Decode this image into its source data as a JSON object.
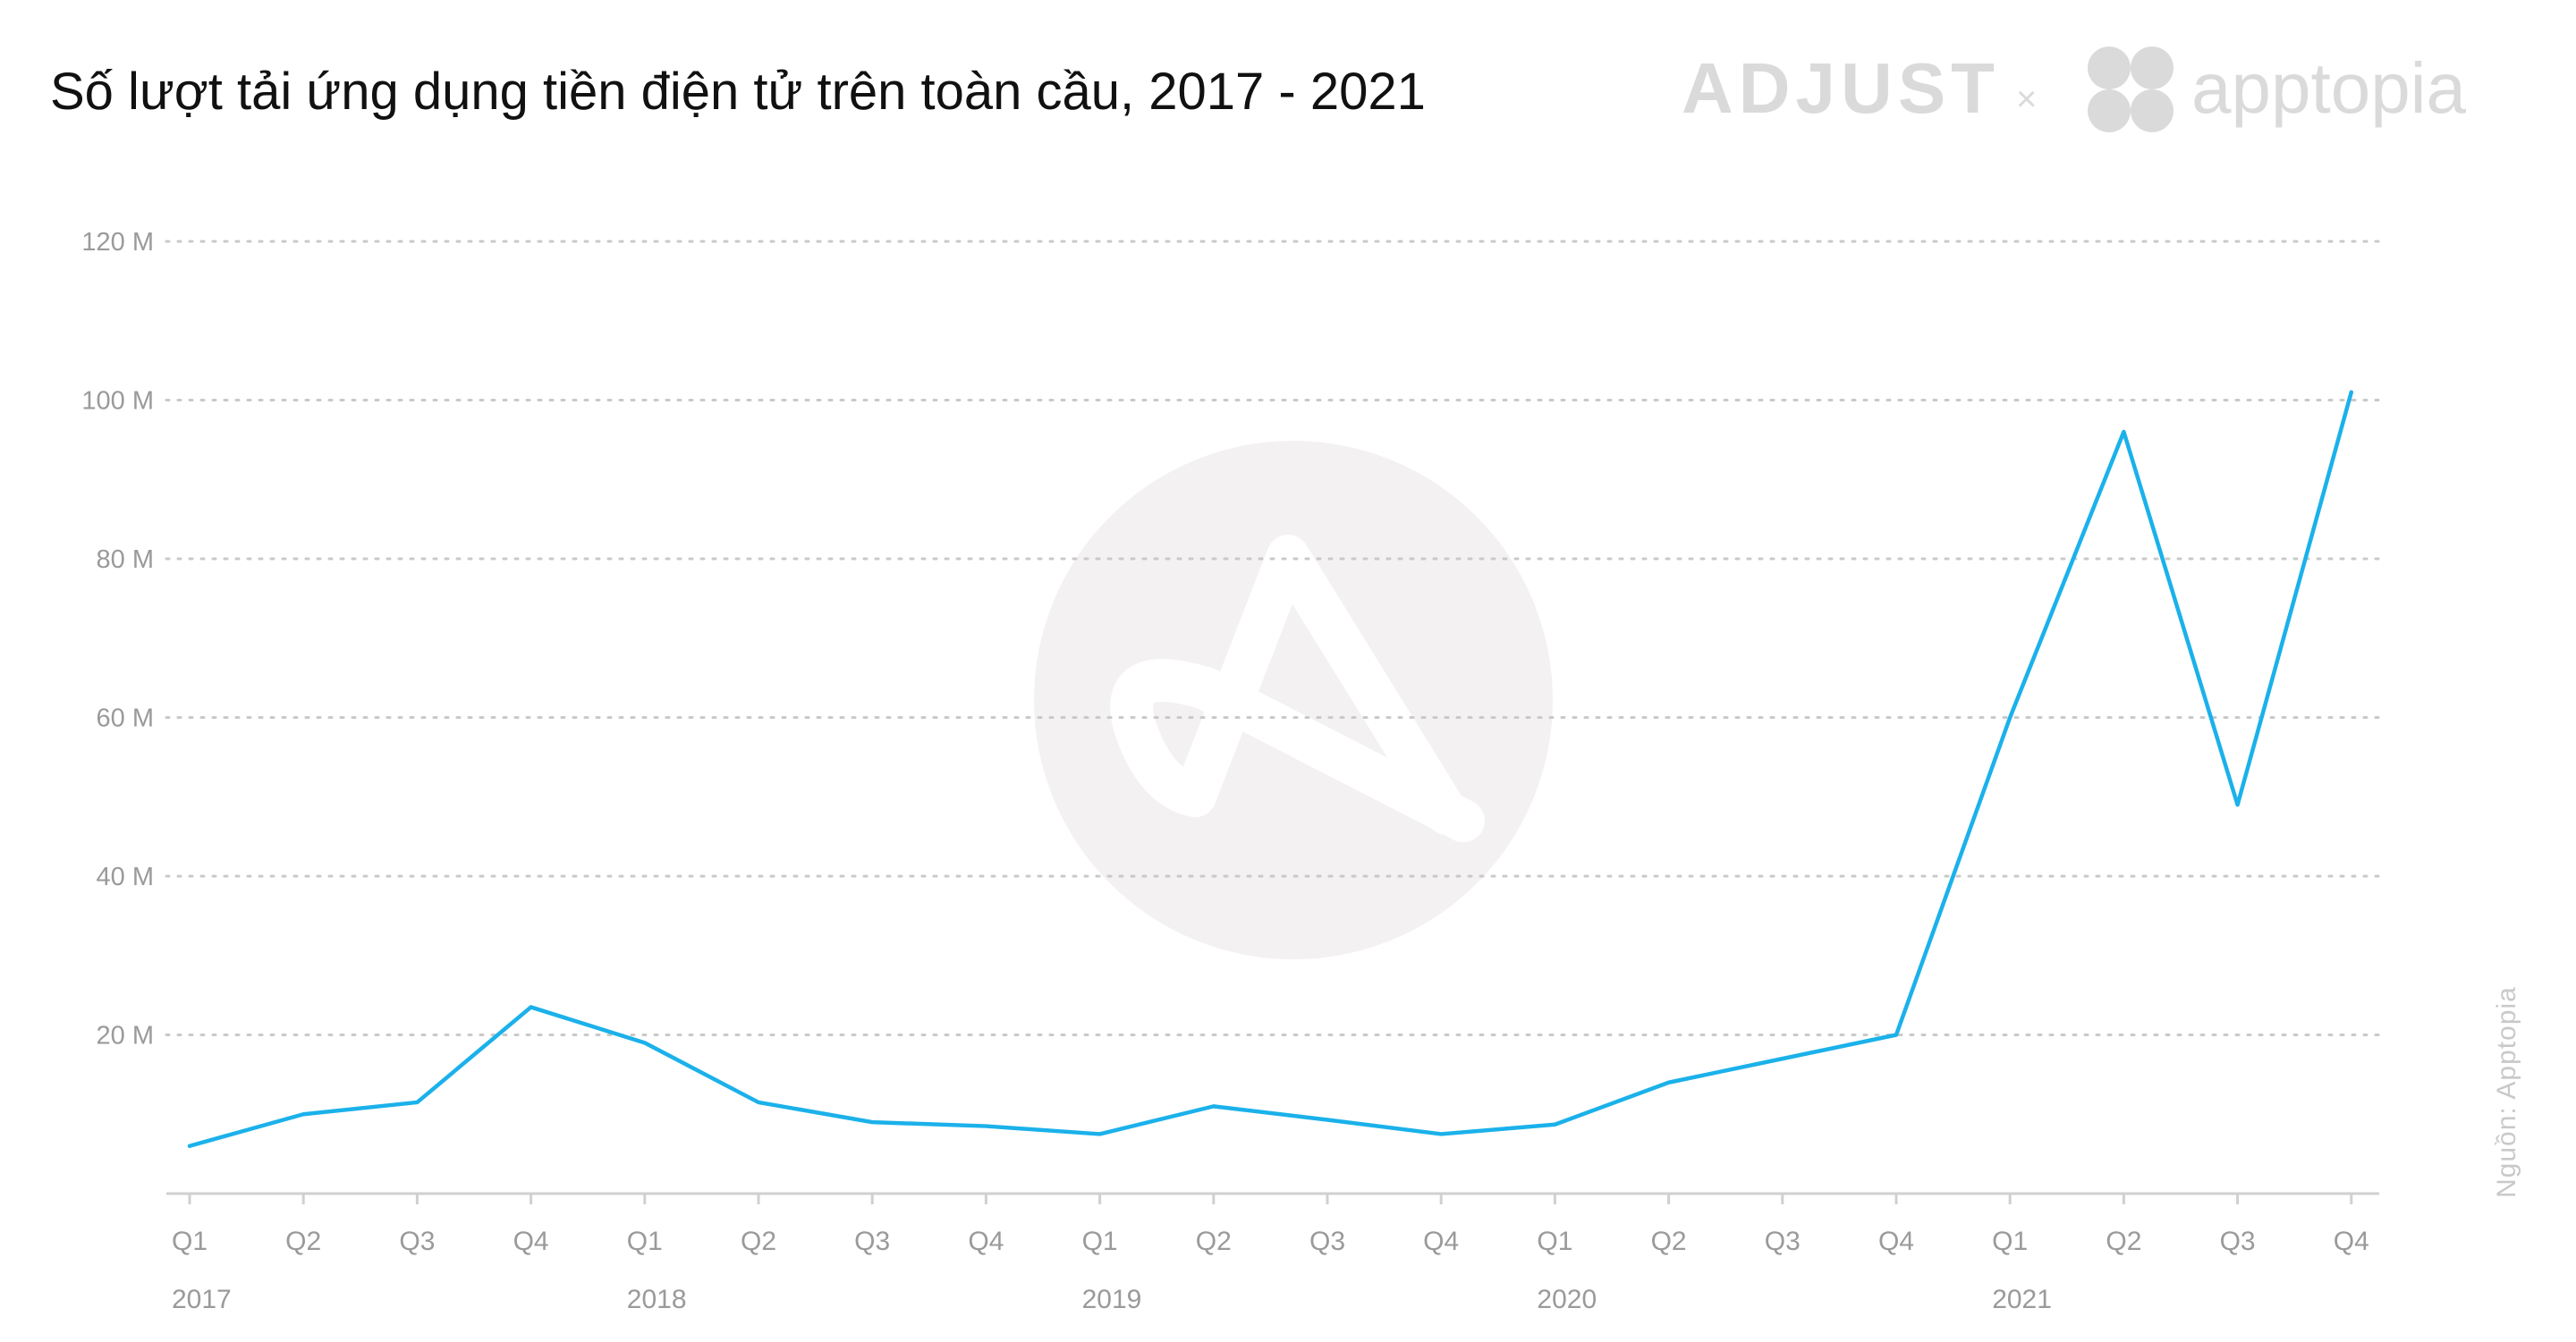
{
  "colors": {
    "line": "#1BB1EA",
    "grid": "#c9c9c9",
    "tick_text": "#9a9a9a",
    "title_text": "#111111",
    "watermark": "#f3f1f1",
    "brand": "#dadada"
  },
  "brands": {
    "left": "ADJUST",
    "separator": "×",
    "right": "apptopia"
  },
  "source": "Nguồn: Apptopia",
  "chart_data": {
    "type": "line",
    "title": "Số lượt tải ứng dụng tiền điện tử trên toàn cầu, 2017 - 2021",
    "xlabel": "",
    "ylabel": "",
    "ylim": [
      0,
      120
    ],
    "y_ticks": [
      {
        "value": 20,
        "label": "20 M"
      },
      {
        "value": 40,
        "label": "40 M"
      },
      {
        "value": 60,
        "label": "60 M"
      },
      {
        "value": 80,
        "label": "80 M"
      },
      {
        "value": 100,
        "label": "100 M"
      },
      {
        "value": 120,
        "label": "120 M"
      }
    ],
    "categories": [
      "Q1",
      "Q2",
      "Q3",
      "Q4",
      "Q1",
      "Q2",
      "Q3",
      "Q4",
      "Q1",
      "Q2",
      "Q3",
      "Q4",
      "Q1",
      "Q2",
      "Q3",
      "Q4",
      "Q1",
      "Q2",
      "Q3",
      "Q4"
    ],
    "years": [
      {
        "label": "2017",
        "index": 0
      },
      {
        "label": "2018",
        "index": 4
      },
      {
        "label": "2019",
        "index": 8
      },
      {
        "label": "2020",
        "index": 12
      },
      {
        "label": "2021",
        "index": 16
      }
    ],
    "grid": true,
    "legend": "none",
    "series": [
      {
        "values": [
          6,
          10,
          11.5,
          23.5,
          19,
          11.5,
          9,
          8.5,
          7.5,
          11,
          9.3,
          7.5,
          8.7,
          14,
          17,
          20,
          60,
          96,
          49,
          101
        ]
      }
    ]
  }
}
